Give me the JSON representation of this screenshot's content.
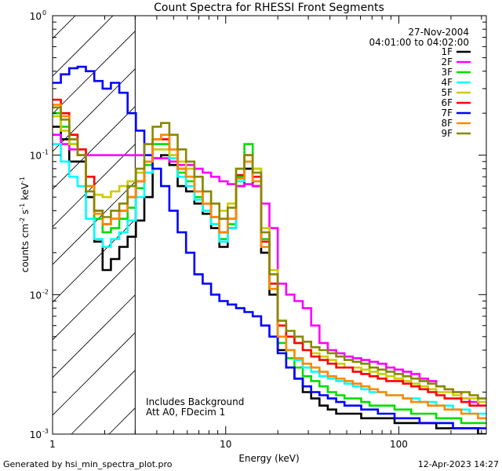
{
  "chart_data": {
    "type": "line",
    "title": "Count Spectra for RHESSI Front Segments",
    "date": "27-Nov-2004",
    "time_range": "04:01:00 to 04:02:00",
    "xlabel": "Energy (keV)",
    "ylabel_parts": {
      "a": "counts cm",
      "b": "-2",
      "c": " s",
      "d": "-1",
      "e": " keV",
      "f": "-1"
    },
    "x_scale": "log",
    "y_scale": "log",
    "xlim": [
      1,
      320
    ],
    "ylim": [
      0.001,
      1
    ],
    "x_ticks": [
      {
        "v": 1,
        "label": "1"
      },
      {
        "v": 10,
        "label": "10"
      },
      {
        "v": 100,
        "label": "100"
      }
    ],
    "y_ticks": [
      {
        "v": 1,
        "base": "10",
        "exp": "0"
      },
      {
        "v": 0.1,
        "base": "10",
        "exp": "-1"
      },
      {
        "v": 0.01,
        "base": "10",
        "exp": "-2"
      },
      {
        "v": 0.001,
        "base": "10",
        "exp": "-3"
      }
    ],
    "excluded_region": {
      "from": 1,
      "to": 3,
      "pattern": "hatched"
    },
    "annotations": [
      "Includes Background",
      "Att A0, FDecim 1"
    ],
    "series": [
      {
        "name": "1F",
        "color": "#000000",
        "values": [
          0.16,
          0.13,
          0.09,
          0.09,
          0.05,
          0.024,
          0.015,
          0.018,
          0.022,
          0.026,
          0.034,
          0.05,
          0.095,
          0.1,
          0.085,
          0.06,
          0.055,
          0.045,
          0.038,
          0.03,
          0.022,
          0.03,
          0.06,
          0.08,
          0.06,
          0.02,
          0.01,
          0.004,
          0.003,
          0.0025,
          0.002,
          0.0018,
          0.0016,
          0.0015,
          0.0014,
          0.0014,
          0.0014,
          0.0013,
          0.0013,
          0.0013,
          0.0013,
          0.0012,
          0.0012,
          0.0012,
          0.0012,
          0.0012,
          0.0011,
          0.0011,
          0.0011,
          0.0011,
          0.0011,
          0.001
        ]
      },
      {
        "name": "2F",
        "color": "#ff00ff",
        "values": [
          0.14,
          0.12,
          0.11,
          0.1,
          0.1,
          0.1,
          0.1,
          0.1,
          0.1,
          0.1,
          0.1,
          0.1,
          0.095,
          0.095,
          0.09,
          0.085,
          0.085,
          0.08,
          0.075,
          0.07,
          0.065,
          0.062,
          0.06,
          0.062,
          0.06,
          0.045,
          0.03,
          0.012,
          0.01,
          0.009,
          0.008,
          0.006,
          0.0045,
          0.004,
          0.0038,
          0.0036,
          0.0035,
          0.0034,
          0.0033,
          0.0032,
          0.003,
          0.0029,
          0.0028,
          0.0027,
          0.0025,
          0.0024,
          0.0022,
          0.0021,
          0.002,
          0.0018,
          0.0017,
          0.0016
        ]
      },
      {
        "name": "3F",
        "color": "#00dd00",
        "values": [
          0.2,
          0.16,
          0.12,
          0.1,
          0.07,
          0.035,
          0.028,
          0.03,
          0.035,
          0.042,
          0.058,
          0.085,
          0.12,
          0.12,
          0.1,
          0.075,
          0.065,
          0.05,
          0.04,
          0.032,
          0.025,
          0.032,
          0.07,
          0.12,
          0.08,
          0.025,
          0.011,
          0.0045,
          0.0035,
          0.003,
          0.0026,
          0.0024,
          0.0022,
          0.002,
          0.0019,
          0.0018,
          0.0018,
          0.0017,
          0.0016,
          0.0016,
          0.0016,
          0.0015,
          0.0015,
          0.0014,
          0.0014,
          0.0014,
          0.0013,
          0.0013,
          0.0013,
          0.0012,
          0.0012,
          0.0012
        ]
      },
      {
        "name": "4F",
        "color": "#00ffff",
        "values": [
          0.12,
          0.09,
          0.07,
          0.06,
          0.035,
          0.025,
          0.022,
          0.025,
          0.028,
          0.034,
          0.05,
          0.075,
          0.11,
          0.11,
          0.095,
          0.07,
          0.06,
          0.048,
          0.04,
          0.032,
          0.024,
          0.03,
          0.065,
          0.09,
          0.065,
          0.022,
          0.012,
          0.005,
          0.004,
          0.0034,
          0.003,
          0.0028,
          0.0026,
          0.0025,
          0.0024,
          0.0023,
          0.0022,
          0.0021,
          0.002,
          0.002,
          0.0019,
          0.0019,
          0.0018,
          0.0018,
          0.0017,
          0.0017,
          0.0016,
          0.0016,
          0.0015,
          0.0015,
          0.0014,
          0.0014
        ]
      },
      {
        "name": "5F",
        "color": "#cccc00",
        "values": [
          0.19,
          0.15,
          0.12,
          0.1,
          0.06,
          0.052,
          0.05,
          0.055,
          0.06,
          0.065,
          0.075,
          0.09,
          0.11,
          0.11,
          0.1,
          0.09,
          0.08,
          0.07,
          0.055,
          0.045,
          0.04,
          0.045,
          0.08,
          0.1,
          0.08,
          0.03,
          0.015,
          0.0065,
          0.005,
          0.0045,
          0.004,
          0.0038,
          0.0036,
          0.0034,
          0.0032,
          0.003,
          0.003,
          0.0029,
          0.0028,
          0.0027,
          0.0026,
          0.0025,
          0.0024,
          0.0023,
          0.0022,
          0.0021,
          0.002,
          0.002,
          0.0019,
          0.0018,
          0.0018,
          0.0017
        ]
      },
      {
        "name": "6F",
        "color": "#ff0000",
        "values": [
          0.25,
          0.2,
          0.14,
          0.11,
          0.07,
          0.04,
          0.032,
          0.035,
          0.04,
          0.05,
          0.065,
          0.09,
          0.13,
          0.13,
          0.11,
          0.08,
          0.07,
          0.055,
          0.045,
          0.036,
          0.028,
          0.035,
          0.072,
          0.1,
          0.07,
          0.024,
          0.012,
          0.006,
          0.005,
          0.0045,
          0.004,
          0.0036,
          0.0034,
          0.0032,
          0.003,
          0.003,
          0.0028,
          0.0027,
          0.0026,
          0.0025,
          0.0024,
          0.0024,
          0.0023,
          0.0022,
          0.0021,
          0.002,
          0.0019,
          0.0018,
          0.0018,
          0.0017,
          0.0016,
          0.0016
        ]
      },
      {
        "name": "7F",
        "color": "#0000ff",
        "values": [
          0.33,
          0.38,
          0.42,
          0.43,
          0.4,
          0.34,
          0.3,
          0.33,
          0.28,
          0.2,
          0.15,
          0.1,
          0.08,
          0.06,
          0.04,
          0.028,
          0.02,
          0.014,
          0.012,
          0.01,
          0.009,
          0.0085,
          0.008,
          0.0075,
          0.007,
          0.006,
          0.005,
          0.0038,
          0.003,
          0.0025,
          0.0022,
          0.002,
          0.0019,
          0.0018,
          0.0017,
          0.0016,
          0.0016,
          0.0015,
          0.0015,
          0.0014,
          0.0014,
          0.0013,
          0.0013,
          0.0013,
          0.0012,
          0.0012,
          0.0012,
          0.0012,
          0.0011,
          0.0011,
          0.0011,
          0.0011
        ]
      },
      {
        "name": "8F",
        "color": "#ff8800",
        "values": [
          0.23,
          0.19,
          0.13,
          0.1,
          0.06,
          0.038,
          0.032,
          0.035,
          0.04,
          0.05,
          0.065,
          0.09,
          0.13,
          0.14,
          0.11,
          0.08,
          0.07,
          0.055,
          0.045,
          0.036,
          0.028,
          0.035,
          0.068,
          0.09,
          0.065,
          0.022,
          0.011,
          0.005,
          0.004,
          0.0035,
          0.0032,
          0.003,
          0.0028,
          0.0026,
          0.0025,
          0.0024,
          0.0023,
          0.0022,
          0.0021,
          0.002,
          0.0019,
          0.0019,
          0.0018,
          0.0017,
          0.0017,
          0.0016,
          0.0016,
          0.0015,
          0.0015,
          0.0014,
          0.0014,
          0.0013
        ]
      },
      {
        "name": "9F",
        "color": "#888800",
        "values": [
          0.22,
          0.18,
          0.13,
          0.1,
          0.055,
          0.04,
          0.036,
          0.04,
          0.045,
          0.06,
          0.08,
          0.12,
          0.16,
          0.17,
          0.14,
          0.11,
          0.09,
          0.07,
          0.055,
          0.045,
          0.035,
          0.042,
          0.08,
          0.1,
          0.075,
          0.028,
          0.014,
          0.0065,
          0.0055,
          0.005,
          0.0046,
          0.0042,
          0.004,
          0.0038,
          0.0036,
          0.0034,
          0.0033,
          0.0032,
          0.003,
          0.0029,
          0.0028,
          0.0027,
          0.0026,
          0.0025,
          0.0024,
          0.0023,
          0.0022,
          0.0021,
          0.002,
          0.002,
          0.0019,
          0.0018
        ]
      }
    ],
    "legend_position": "top-right"
  },
  "footer": {
    "left": "Generated by hsi_min_spectra_plot.pro",
    "right": "12-Apr-2023 14:27"
  }
}
